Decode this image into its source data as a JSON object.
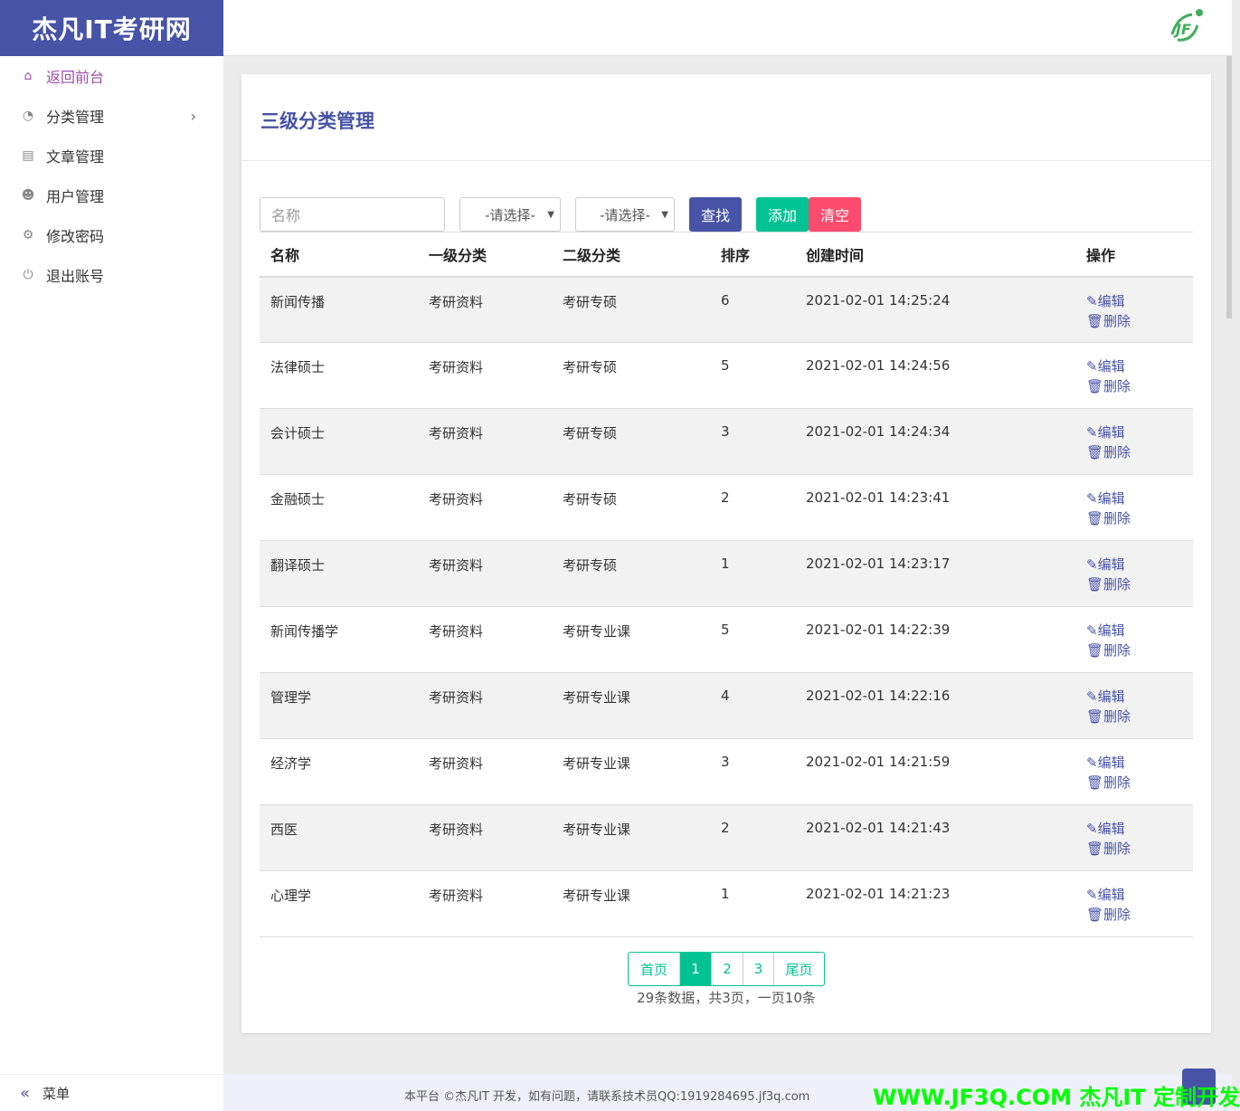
{
  "brand": "杰凡IT考研网",
  "sidebar": {
    "items": [
      {
        "label": "返回前台",
        "icon": "home-icon",
        "glyph": "⌂"
      },
      {
        "label": "分类管理",
        "icon": "dashboard-icon",
        "glyph": "◔"
      },
      {
        "label": "文章管理",
        "icon": "file-icon",
        "glyph": "▤"
      },
      {
        "label": "用户管理",
        "icon": "users-icon",
        "glyph": "☻"
      },
      {
        "label": "修改密码",
        "icon": "gears-icon",
        "glyph": "⚙"
      },
      {
        "label": "退出账号",
        "icon": "power-icon",
        "glyph": "⏻"
      }
    ],
    "menu_label": "菜单"
  },
  "page": {
    "title": "三级分类管理"
  },
  "toolbar": {
    "name_placeholder": "名称",
    "select1": "-请选择-",
    "select2": "-请选择-",
    "search": "查找",
    "add": "添加",
    "clear": "清空"
  },
  "colors": {
    "primary": "#4753a7",
    "success": "#00c292",
    "danger": "#fc4b6c"
  },
  "table": {
    "headers": [
      "名称",
      "一级分类",
      "二级分类",
      "排序",
      "创建时间",
      "操作"
    ],
    "edit": "编辑",
    "delete": "删除",
    "rows": [
      [
        "新闻传播",
        "考研资料",
        "考研专硕",
        "6",
        "2021-02-01 14:25:24"
      ],
      [
        "法律硕士",
        "考研资料",
        "考研专硕",
        "5",
        "2021-02-01 14:24:56"
      ],
      [
        "会计硕士",
        "考研资料",
        "考研专硕",
        "3",
        "2021-02-01 14:24:34"
      ],
      [
        "金融硕士",
        "考研资料",
        "考研专硕",
        "2",
        "2021-02-01 14:23:41"
      ],
      [
        "翻译硕士",
        "考研资料",
        "考研专硕",
        "1",
        "2021-02-01 14:23:17"
      ],
      [
        "新闻传播学",
        "考研资料",
        "考研专业课",
        "5",
        "2021-02-01 14:22:39"
      ],
      [
        "管理学",
        "考研资料",
        "考研专业课",
        "4",
        "2021-02-01 14:22:16"
      ],
      [
        "经济学",
        "考研资料",
        "考研专业课",
        "3",
        "2021-02-01 14:21:59"
      ],
      [
        "西医",
        "考研资料",
        "考研专业课",
        "2",
        "2021-02-01 14:21:43"
      ],
      [
        "心理学",
        "考研资料",
        "考研专业课",
        "1",
        "2021-02-01 14:21:23"
      ]
    ]
  },
  "pagination": {
    "first": "首页",
    "pages": [
      "1",
      "2",
      "3"
    ],
    "current": "1",
    "last": "尾页",
    "info": "29条数据，共3页，一页10条"
  },
  "footer": "本平台 ©杰凡IT 开发，如有问题，请联系技术员QQ:1919284695.jf3q.com",
  "watermark": "WWW.JF3Q.COM 杰凡IT  定制开发"
}
